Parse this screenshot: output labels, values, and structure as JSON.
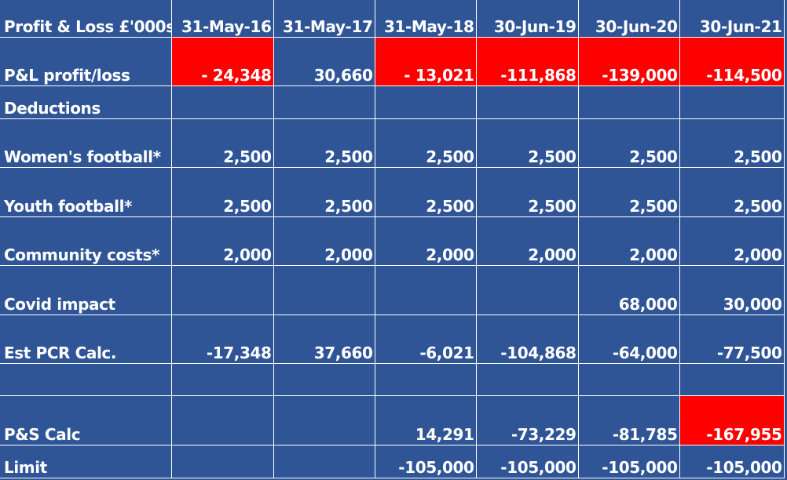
{
  "table": {
    "header": {
      "label": "Profit & Loss £'000s",
      "periods": [
        "31-May-16",
        "31-May-17",
        "31-May-18",
        "30-Jun-19",
        "30-Jun-20",
        "30-Jun-21"
      ]
    },
    "highlight_color": "#ff0000",
    "background_color": "#2f5597",
    "rows": [
      {
        "label": "P&L profit/loss",
        "values": [
          "- 24,348",
          "30,660",
          "- 13,021",
          "-111,868",
          "-139,000",
          "-114,500"
        ],
        "highlighted": [
          true,
          false,
          true,
          true,
          true,
          true
        ]
      },
      {
        "label": "Deductions",
        "values": [
          "",
          "",
          "",
          "",
          "",
          ""
        ],
        "highlighted": [
          false,
          false,
          false,
          false,
          false,
          false
        ]
      },
      {
        "label": "Women's football*",
        "values": [
          "2,500",
          "2,500",
          "2,500",
          "2,500",
          "2,500",
          "2,500"
        ],
        "highlighted": [
          false,
          false,
          false,
          false,
          false,
          false
        ]
      },
      {
        "label": "Youth football*",
        "values": [
          "2,500",
          "2,500",
          "2,500",
          "2,500",
          "2,500",
          "2,500"
        ],
        "highlighted": [
          false,
          false,
          false,
          false,
          false,
          false
        ]
      },
      {
        "label": "Community costs*",
        "values": [
          "2,000",
          "2,000",
          "2,000",
          "2,000",
          "2,000",
          "2,000"
        ],
        "highlighted": [
          false,
          false,
          false,
          false,
          false,
          false
        ]
      },
      {
        "label": "Covid impact",
        "values": [
          "",
          "",
          "",
          "",
          "68,000",
          "30,000"
        ],
        "highlighted": [
          false,
          false,
          false,
          false,
          false,
          false
        ]
      },
      {
        "label": "Est PCR Calc.",
        "values": [
          "-17,348",
          "37,660",
          "-6,021",
          "-104,868",
          "-64,000",
          "-77,500"
        ],
        "highlighted": [
          false,
          false,
          false,
          false,
          false,
          false
        ]
      },
      {
        "label": "",
        "values": [
          "",
          "",
          "",
          "",
          "",
          ""
        ],
        "highlighted": [
          false,
          false,
          false,
          false,
          false,
          false
        ]
      },
      {
        "label": "P&S Calc",
        "values": [
          "",
          "",
          "14,291",
          "-73,229",
          "-81,785",
          "-167,955"
        ],
        "highlighted": [
          false,
          false,
          false,
          false,
          false,
          true
        ]
      },
      {
        "label": "Limit",
        "values": [
          "",
          "",
          "-105,000",
          "-105,000",
          "-105,000",
          "-105,000"
        ],
        "highlighted": [
          false,
          false,
          false,
          false,
          false,
          false
        ]
      }
    ]
  }
}
